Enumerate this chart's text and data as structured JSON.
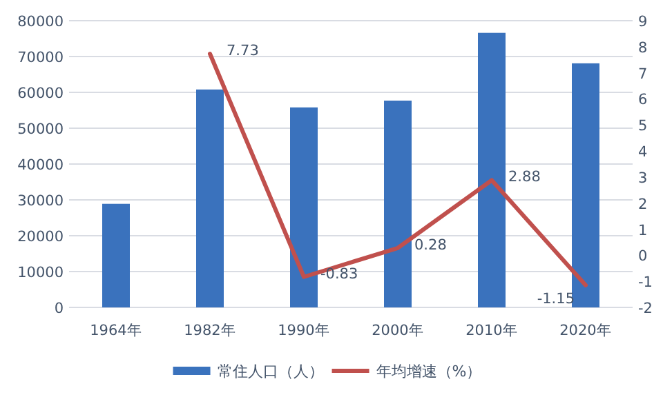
{
  "chart_data": {
    "type": "bar",
    "categories": [
      "1964年",
      "1982年",
      "1990年",
      "2000年",
      "2010年",
      "2020年"
    ],
    "series": [
      {
        "name": "常住人口（人）",
        "color": "#3a72bd",
        "values": [
          28900,
          60800,
          55800,
          57700,
          76600,
          68100
        ]
      },
      {
        "name": "年均增速（%）",
        "type": "line",
        "axis": "y2",
        "color": "#c0504d",
        "values": [
          null,
          7.73,
          -0.83,
          0.28,
          2.88,
          -1.15
        ],
        "value_labels": [
          null,
          "7.73",
          "-0.83",
          "0.28",
          "2.88",
          "-1.15"
        ]
      }
    ],
    "ylim": [
      0,
      80000
    ],
    "yticks": [
      0,
      10000,
      20000,
      30000,
      40000,
      50000,
      60000,
      70000,
      80000
    ],
    "y2lim": [
      -2,
      9
    ],
    "y2ticks": [
      -2,
      -1,
      0,
      1,
      2,
      3,
      4,
      5,
      6,
      7,
      8,
      9
    ],
    "grid": "y",
    "legend": "bottom",
    "marker": "none",
    "line_style": "solid"
  }
}
